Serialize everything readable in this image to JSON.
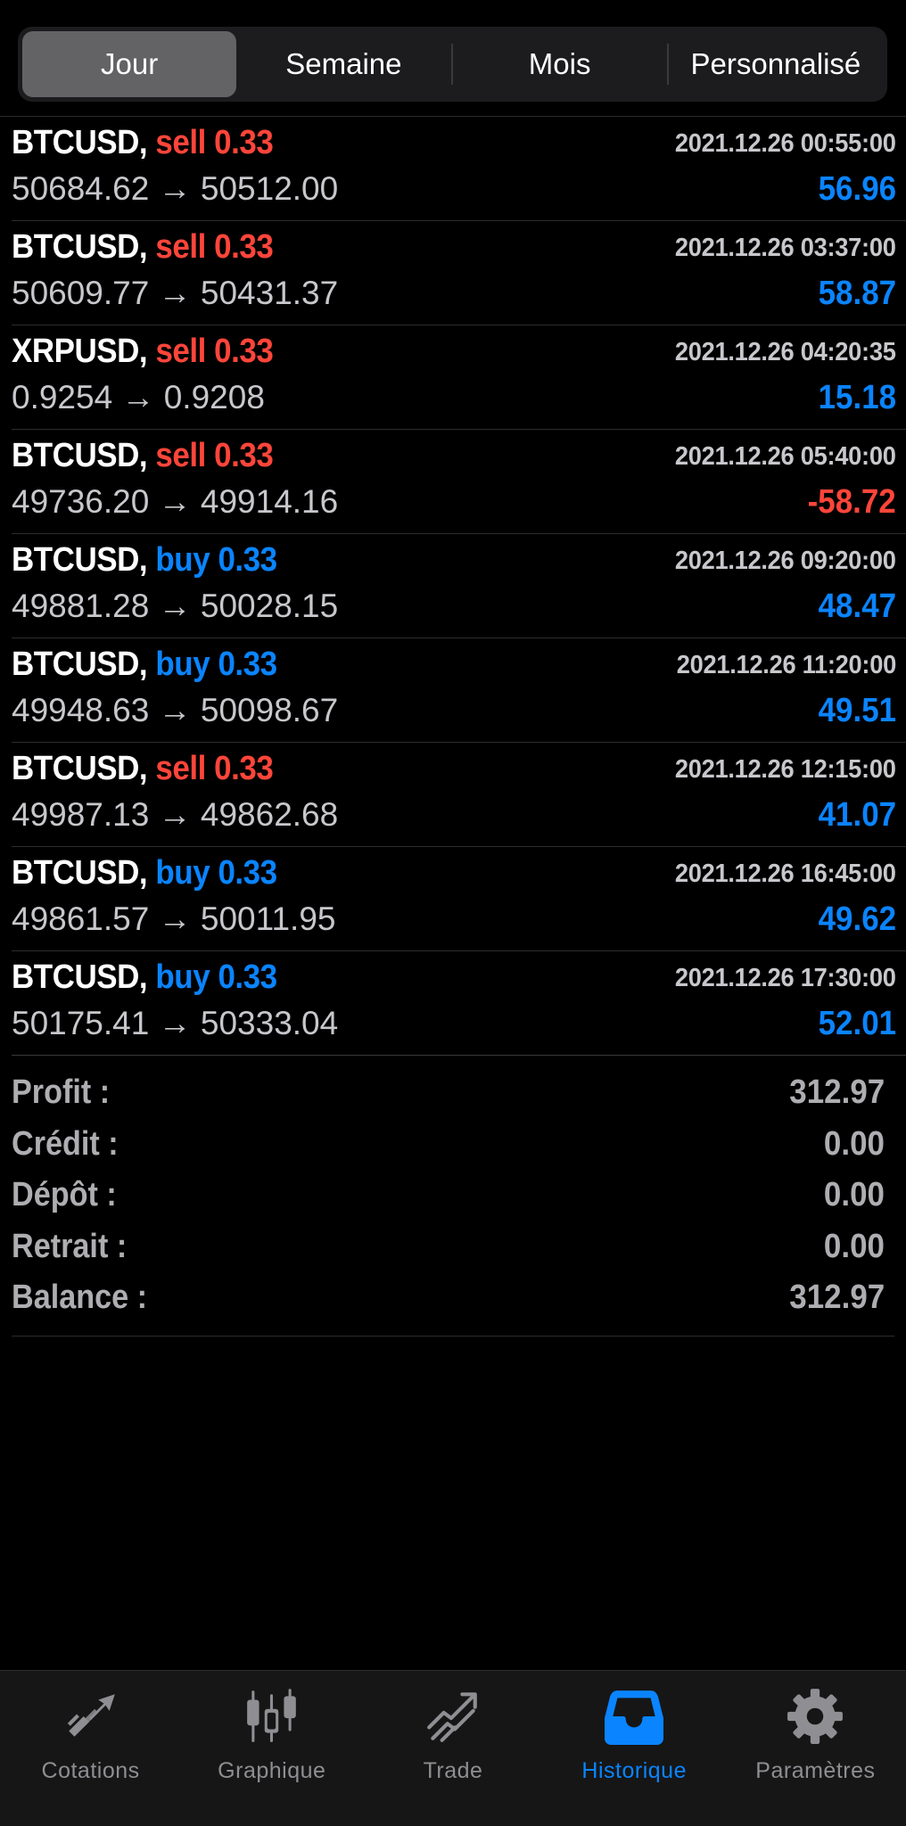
{
  "segments": [
    {
      "label": "Jour",
      "active": true
    },
    {
      "label": "Semaine",
      "active": false
    },
    {
      "label": "Mois",
      "active": false
    },
    {
      "label": "Personnalisé",
      "active": false
    }
  ],
  "arrow": "→",
  "deals": [
    {
      "symbol": "BTCUSD,",
      "side": "sell",
      "side_label": "sell 0.33",
      "time": "2021.12.26 00:55:00",
      "open": "50684.62",
      "close": "50512.00",
      "profit": "56.96"
    },
    {
      "symbol": "BTCUSD,",
      "side": "sell",
      "side_label": "sell 0.33",
      "time": "2021.12.26 03:37:00",
      "open": "50609.77",
      "close": "50431.37",
      "profit": "58.87"
    },
    {
      "symbol": "XRPUSD,",
      "side": "sell",
      "side_label": "sell 0.33",
      "time": "2021.12.26 04:20:35",
      "open": "0.9254",
      "close": "0.9208",
      "profit": "15.18"
    },
    {
      "symbol": "BTCUSD,",
      "side": "sell",
      "side_label": "sell 0.33",
      "time": "2021.12.26 05:40:00",
      "open": "49736.20",
      "close": "49914.16",
      "profit": "-58.72"
    },
    {
      "symbol": "BTCUSD,",
      "side": "buy",
      "side_label": "buy 0.33",
      "time": "2021.12.26 09:20:00",
      "open": "49881.28",
      "close": "50028.15",
      "profit": "48.47"
    },
    {
      "symbol": "BTCUSD,",
      "side": "buy",
      "side_label": "buy 0.33",
      "time": "2021.12.26 11:20:00",
      "open": "49948.63",
      "close": "50098.67",
      "profit": "49.51"
    },
    {
      "symbol": "BTCUSD,",
      "side": "sell",
      "side_label": "sell 0.33",
      "time": "2021.12.26 12:15:00",
      "open": "49987.13",
      "close": "49862.68",
      "profit": "41.07"
    },
    {
      "symbol": "BTCUSD,",
      "side": "buy",
      "side_label": "buy 0.33",
      "time": "2021.12.26 16:45:00",
      "open": "49861.57",
      "close": "50011.95",
      "profit": "49.62"
    },
    {
      "symbol": "BTCUSD,",
      "side": "buy",
      "side_label": "buy 0.33",
      "time": "2021.12.26 17:30:00",
      "open": "50175.41",
      "close": "50333.04",
      "profit": "52.01"
    }
  ],
  "summary": [
    {
      "label": "Profit :",
      "value": "312.97"
    },
    {
      "label": "Crédit :",
      "value": "0.00"
    },
    {
      "label": "Dépôt :",
      "value": "0.00"
    },
    {
      "label": "Retrait :",
      "value": "0.00"
    },
    {
      "label": "Balance :",
      "value": "312.97"
    }
  ],
  "tabs": [
    {
      "label": "Cotations",
      "icon": "quotes-arrows-icon",
      "active": false
    },
    {
      "label": "Graphique",
      "icon": "candlestick-chart-icon",
      "active": false
    },
    {
      "label": "Trade",
      "icon": "trade-trend-icon",
      "active": false
    },
    {
      "label": "Historique",
      "icon": "history-inbox-icon",
      "active": true
    },
    {
      "label": "Paramètres",
      "icon": "settings-gear-icon",
      "active": false
    }
  ],
  "colors": {
    "sell": "#ff453a",
    "buy": "#0a84ff",
    "active_tab": "#0a84ff",
    "inactive_tab": "#8e8e93"
  }
}
